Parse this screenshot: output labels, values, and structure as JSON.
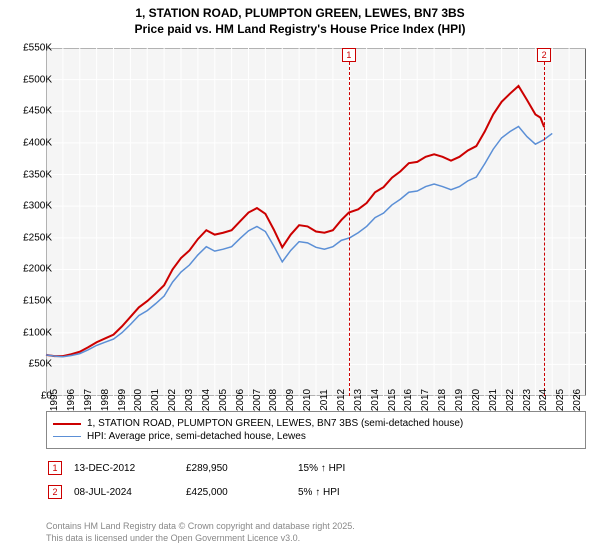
{
  "title_line1": "1, STATION ROAD, PLUMPTON GREEN, LEWES, BN7 3BS",
  "title_line2": "Price paid vs. HM Land Registry's House Price Index (HPI)",
  "chart": {
    "type": "line",
    "background_color": "#f5f5f5",
    "grid_color": "#ffffff",
    "border_color": "#666666",
    "x_range": [
      1995,
      2027
    ],
    "y_range": [
      0,
      550000
    ],
    "y_ticks": [
      0,
      50000,
      100000,
      150000,
      200000,
      250000,
      300000,
      350000,
      400000,
      450000,
      500000,
      550000
    ],
    "y_tick_labels": [
      "£0",
      "£50K",
      "£100K",
      "£150K",
      "£200K",
      "£250K",
      "£300K",
      "£350K",
      "£400K",
      "£450K",
      "£500K",
      "£550K"
    ],
    "x_ticks": [
      1995,
      1996,
      1997,
      1998,
      1999,
      2000,
      2001,
      2002,
      2003,
      2004,
      2005,
      2006,
      2007,
      2008,
      2009,
      2010,
      2011,
      2012,
      2013,
      2014,
      2015,
      2016,
      2017,
      2018,
      2019,
      2020,
      2021,
      2022,
      2023,
      2024,
      2025,
      2026
    ],
    "series": [
      {
        "name": "1, STATION ROAD, PLUMPTON GREEN, LEWES, BN7 3BS (semi-detached house)",
        "color": "#cc0000",
        "width": 2,
        "points": [
          [
            1995.0,
            65000
          ],
          [
            1995.5,
            63000
          ],
          [
            1996.0,
            63000
          ],
          [
            1996.5,
            66000
          ],
          [
            1997.0,
            70000
          ],
          [
            1997.5,
            77000
          ],
          [
            1998.0,
            85000
          ],
          [
            1998.5,
            91000
          ],
          [
            1999.0,
            97000
          ],
          [
            1999.5,
            110000
          ],
          [
            2000.0,
            125000
          ],
          [
            2000.5,
            140000
          ],
          [
            2001.0,
            150000
          ],
          [
            2001.5,
            162000
          ],
          [
            2002.0,
            175000
          ],
          [
            2002.5,
            200000
          ],
          [
            2003.0,
            218000
          ],
          [
            2003.5,
            230000
          ],
          [
            2004.0,
            248000
          ],
          [
            2004.5,
            262000
          ],
          [
            2005.0,
            255000
          ],
          [
            2005.5,
            258000
          ],
          [
            2006.0,
            262000
          ],
          [
            2006.5,
            276000
          ],
          [
            2007.0,
            290000
          ],
          [
            2007.5,
            297000
          ],
          [
            2008.0,
            288000
          ],
          [
            2008.5,
            263000
          ],
          [
            2009.0,
            235000
          ],
          [
            2009.5,
            255000
          ],
          [
            2010.0,
            270000
          ],
          [
            2010.5,
            268000
          ],
          [
            2011.0,
            260000
          ],
          [
            2011.5,
            258000
          ],
          [
            2012.0,
            262000
          ],
          [
            2012.5,
            278000
          ],
          [
            2012.95,
            289950
          ],
          [
            2013.5,
            295000
          ],
          [
            2014.0,
            305000
          ],
          [
            2014.5,
            322000
          ],
          [
            2015.0,
            330000
          ],
          [
            2015.5,
            345000
          ],
          [
            2016.0,
            355000
          ],
          [
            2016.5,
            368000
          ],
          [
            2017.0,
            370000
          ],
          [
            2017.5,
            378000
          ],
          [
            2018.0,
            382000
          ],
          [
            2018.5,
            378000
          ],
          [
            2019.0,
            372000
          ],
          [
            2019.5,
            378000
          ],
          [
            2020.0,
            388000
          ],
          [
            2020.5,
            395000
          ],
          [
            2021.0,
            418000
          ],
          [
            2021.5,
            445000
          ],
          [
            2022.0,
            465000
          ],
          [
            2022.5,
            478000
          ],
          [
            2023.0,
            490000
          ],
          [
            2023.5,
            468000
          ],
          [
            2024.0,
            445000
          ],
          [
            2024.3,
            440000
          ],
          [
            2024.52,
            425000
          ]
        ]
      },
      {
        "name": "HPI: Average price, semi-detached house, Lewes",
        "color": "#5b8fd6",
        "width": 1.5,
        "points": [
          [
            1995.0,
            65000
          ],
          [
            1995.5,
            63000
          ],
          [
            1996.0,
            62000
          ],
          [
            1996.5,
            64000
          ],
          [
            1997.0,
            67000
          ],
          [
            1997.5,
            73000
          ],
          [
            1998.0,
            80000
          ],
          [
            1998.5,
            85000
          ],
          [
            1999.0,
            90000
          ],
          [
            1999.5,
            100000
          ],
          [
            2000.0,
            113000
          ],
          [
            2000.5,
            127000
          ],
          [
            2001.0,
            135000
          ],
          [
            2001.5,
            146000
          ],
          [
            2002.0,
            158000
          ],
          [
            2002.5,
            180000
          ],
          [
            2003.0,
            196000
          ],
          [
            2003.5,
            207000
          ],
          [
            2004.0,
            223000
          ],
          [
            2004.5,
            236000
          ],
          [
            2005.0,
            229000
          ],
          [
            2005.5,
            232000
          ],
          [
            2006.0,
            236000
          ],
          [
            2006.5,
            249000
          ],
          [
            2007.0,
            261000
          ],
          [
            2007.5,
            268000
          ],
          [
            2008.0,
            260000
          ],
          [
            2008.5,
            237000
          ],
          [
            2009.0,
            212000
          ],
          [
            2009.5,
            230000
          ],
          [
            2010.0,
            244000
          ],
          [
            2010.5,
            242000
          ],
          [
            2011.0,
            235000
          ],
          [
            2011.5,
            232000
          ],
          [
            2012.0,
            236000
          ],
          [
            2012.5,
            246000
          ],
          [
            2013.0,
            250000
          ],
          [
            2013.5,
            258000
          ],
          [
            2014.0,
            268000
          ],
          [
            2014.5,
            282000
          ],
          [
            2015.0,
            289000
          ],
          [
            2015.5,
            302000
          ],
          [
            2016.0,
            311000
          ],
          [
            2016.5,
            322000
          ],
          [
            2017.0,
            324000
          ],
          [
            2017.5,
            331000
          ],
          [
            2018.0,
            335000
          ],
          [
            2018.5,
            331000
          ],
          [
            2019.0,
            326000
          ],
          [
            2019.5,
            331000
          ],
          [
            2020.0,
            340000
          ],
          [
            2020.5,
            346000
          ],
          [
            2021.0,
            367000
          ],
          [
            2021.5,
            390000
          ],
          [
            2022.0,
            408000
          ],
          [
            2022.5,
            418000
          ],
          [
            2023.0,
            426000
          ],
          [
            2023.5,
            410000
          ],
          [
            2024.0,
            398000
          ],
          [
            2024.5,
            405000
          ],
          [
            2025.0,
            415000
          ]
        ]
      }
    ],
    "markers": [
      {
        "num": "1",
        "x": 2012.95,
        "color": "#cc0000"
      },
      {
        "num": "2",
        "x": 2024.52,
        "color": "#cc0000"
      }
    ]
  },
  "legend": [
    {
      "color": "#cc0000",
      "width": 2,
      "label": "1, STATION ROAD, PLUMPTON GREEN, LEWES, BN7 3BS (semi-detached house)"
    },
    {
      "color": "#5b8fd6",
      "width": 1.5,
      "label": "HPI: Average price, semi-detached house, Lewes"
    }
  ],
  "marker_rows": [
    {
      "num": "1",
      "color": "#cc0000",
      "date": "13-DEC-2012",
      "price": "£289,950",
      "pct": "15% ↑ HPI"
    },
    {
      "num": "2",
      "color": "#cc0000",
      "date": "08-JUL-2024",
      "price": "£425,000",
      "pct": "5% ↑ HPI"
    }
  ],
  "footer_line1": "Contains HM Land Registry data © Crown copyright and database right 2025.",
  "footer_line2": "This data is licensed under the Open Government Licence v3.0."
}
